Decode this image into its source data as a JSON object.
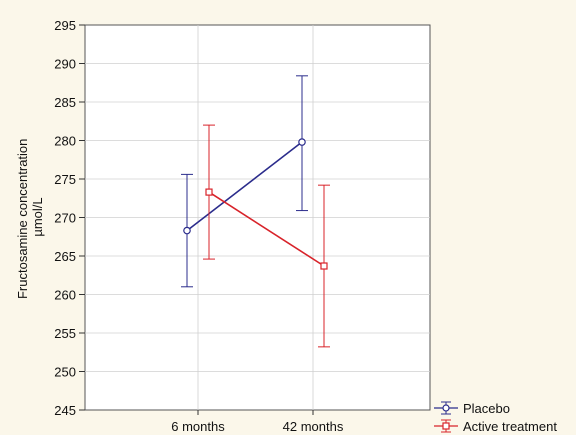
{
  "chart_data": {
    "type": "line",
    "ylabel": "Fructosamine concentration µmol/L",
    "ylabel_lines": [
      "Fructosamine concentration",
      "µmol/L"
    ],
    "xlabel": "",
    "categories": [
      "6 months",
      "42 months"
    ],
    "yticks": [
      245,
      250,
      255,
      260,
      265,
      270,
      275,
      280,
      285,
      290,
      295
    ],
    "ylim": [
      245,
      295
    ],
    "grid": true,
    "legend_position": "bottom-right, outside plot",
    "series": [
      {
        "name": "Placebo",
        "color": "#2b2c8c",
        "marker": "circle",
        "values": [
          268.3,
          279.8
        ],
        "lower": [
          261.0,
          270.9
        ],
        "upper": [
          275.6,
          288.4
        ]
      },
      {
        "name": "Active treatment",
        "color": "#d8232a",
        "marker": "square",
        "values": [
          273.3,
          263.7
        ],
        "lower": [
          264.6,
          253.2
        ],
        "upper": [
          282.0,
          274.2
        ]
      }
    ]
  }
}
